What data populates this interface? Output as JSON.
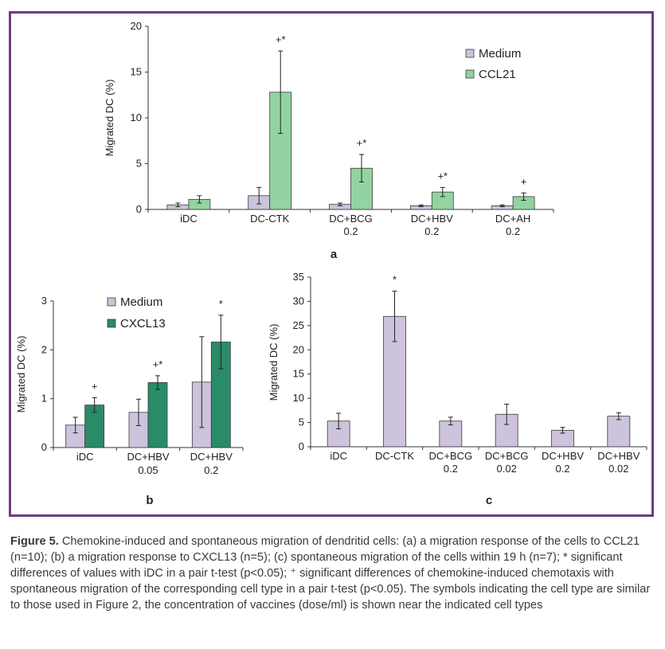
{
  "charts": [
    {
      "id": "a",
      "type": "bar",
      "panel_label": "a",
      "ylabel": "Migrated DC (%)",
      "ylim": [
        0,
        20
      ],
      "yticks": [
        0,
        5,
        10,
        15,
        20
      ],
      "categories": [
        [
          "iDC"
        ],
        [
          "DC-CTK"
        ],
        [
          "DC+BCG",
          "0.2"
        ],
        [
          "DC+HBV",
          "0.2"
        ],
        [
          "DC+AH",
          "0.2"
        ]
      ],
      "series": [
        {
          "name": "Medium",
          "color": "#cdc3dd",
          "values": [
            0.5,
            1.5,
            0.55,
            0.4,
            0.4
          ],
          "errors": [
            0.2,
            0.9,
            0.15,
            0.1,
            0.1
          ]
        },
        {
          "name": "CCL21",
          "color": "#93d3a1",
          "values": [
            1.1,
            12.8,
            4.5,
            1.9,
            1.4
          ],
          "errors": [
            0.4,
            4.5,
            1.5,
            0.5,
            0.4
          ]
        }
      ],
      "annotations": [
        "",
        "+*",
        "+*",
        "+*",
        "+"
      ],
      "legend_position": "top-right"
    },
    {
      "id": "b",
      "type": "bar",
      "panel_label": "b",
      "ylabel": "Migrated DC (%)",
      "ylim": [
        0,
        3
      ],
      "yticks": [
        0,
        1,
        2,
        3
      ],
      "categories": [
        [
          "iDC"
        ],
        [
          "DC+HBV",
          "0.05"
        ],
        [
          "DC+HBV",
          "0.2"
        ]
      ],
      "series": [
        {
          "name": "Medium",
          "color": "#cdc3dd",
          "values": [
            0.46,
            0.72,
            1.34
          ],
          "errors": [
            0.16,
            0.27,
            0.93
          ]
        },
        {
          "name": "CXCL13",
          "color": "#2a8b67",
          "values": [
            0.87,
            1.33,
            2.16
          ],
          "errors": [
            0.15,
            0.14,
            0.55
          ]
        }
      ],
      "annotations": [
        "+",
        "+*",
        "*"
      ],
      "legend_position": "top-left"
    },
    {
      "id": "c",
      "type": "bar",
      "panel_label": "c",
      "ylabel": "Migrated DC (%)",
      "ylim": [
        0,
        35
      ],
      "yticks": [
        0,
        5,
        10,
        15,
        20,
        25,
        30,
        35
      ],
      "categories": [
        [
          "iDC"
        ],
        [
          "DC-CTK"
        ],
        [
          "DC+BCG",
          "0.2"
        ],
        [
          "DC+BCG",
          "0.02"
        ],
        [
          "DC+HBV",
          "0.2"
        ],
        [
          "DC+HBV",
          "0.02"
        ]
      ],
      "series": [
        {
          "name": "",
          "color": "#cdc3dd",
          "values": [
            5.3,
            26.9,
            5.3,
            6.7,
            3.4,
            6.3
          ],
          "errors": [
            1.6,
            5.2,
            0.8,
            2.1,
            0.6,
            0.7
          ]
        }
      ],
      "annotations": [
        "",
        "*",
        "",
        "",
        "",
        ""
      ]
    }
  ],
  "caption": {
    "label": "Figure 5.",
    "text": "Chemokine-induced and spontaneous migration of dendritid cells: (a) a migration response of the cells to CCL21 (n=10); (b) a migration response to CXCL13 (n=5); (c) spontaneous migration of the cells within 19 h (n=7); * significant differences of values with iDC in a pair t-test (p<0.05); ⁺ significant differences of chemokine-induced chemotaxis with spontaneous migration of the corresponding cell type in a pair t-test (p<0.05). The symbols indicating the cell type are similar to those used in Figure 2, the concentration of vaccines (dose/ml) is shown near the indicated cell types"
  }
}
